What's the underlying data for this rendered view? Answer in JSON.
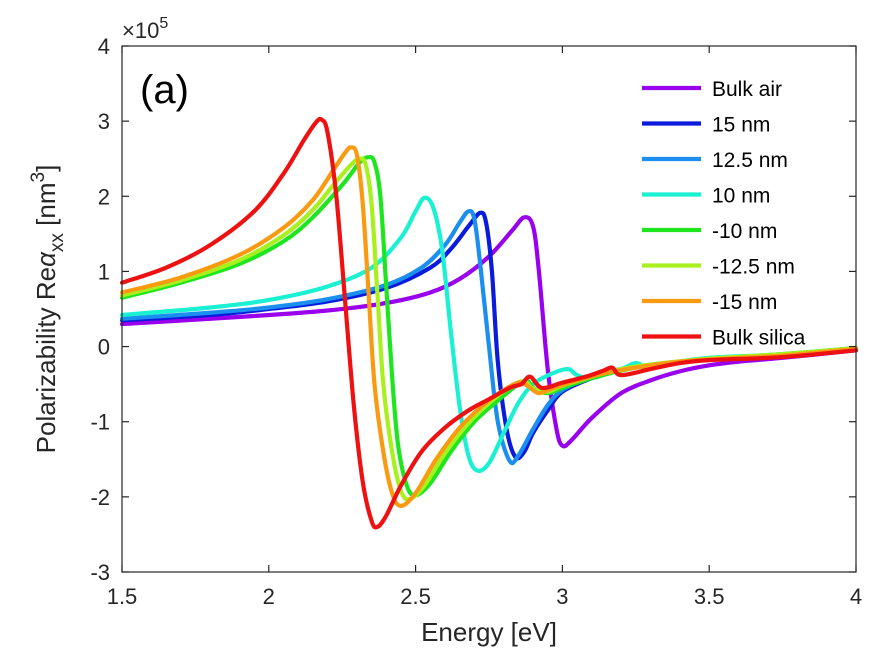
{
  "chart_data": {
    "type": "line",
    "panel_label": "(a)",
    "xlabel": "Energy [eV]",
    "ylabel": {
      "prefix": "Polarizability Re",
      "symbol": "α",
      "subscript": "xx",
      "unit_open": " [nm",
      "unit_sup": "3",
      "unit_close": "]"
    },
    "y_exponent": {
      "times": "×10",
      "power": "5"
    },
    "xlim": [
      1.5,
      4
    ],
    "ylim": [
      -3,
      4
    ],
    "xticks": [
      1.5,
      2,
      2.5,
      3,
      3.5,
      4
    ],
    "xtick_labels": [
      "1.5",
      "2",
      "2.5",
      "3",
      "3.5",
      "4"
    ],
    "yticks": [
      -3,
      -2,
      -1,
      0,
      1,
      2,
      3,
      4
    ],
    "ytick_labels": [
      "-3",
      "-2",
      "-1",
      "0",
      "1",
      "2",
      "3",
      "4"
    ],
    "legend_position": "top-right",
    "series": [
      {
        "name": "Bulk air",
        "color": "#9900ee",
        "points": [
          [
            1.5,
            0.3
          ],
          [
            1.8,
            0.37
          ],
          [
            2.0,
            0.42
          ],
          [
            2.2,
            0.48
          ],
          [
            2.4,
            0.58
          ],
          [
            2.55,
            0.72
          ],
          [
            2.65,
            0.9
          ],
          [
            2.75,
            1.2
          ],
          [
            2.83,
            1.55
          ],
          [
            2.87,
            1.72
          ],
          [
            2.9,
            1.6
          ],
          [
            2.92,
            1.0
          ],
          [
            2.95,
            -0.3
          ],
          [
            2.98,
            -1.1
          ],
          [
            3.0,
            -1.32
          ],
          [
            3.03,
            -1.25
          ],
          [
            3.1,
            -0.95
          ],
          [
            3.2,
            -0.62
          ],
          [
            3.3,
            -0.45
          ],
          [
            3.4,
            -0.33
          ],
          [
            3.5,
            -0.25
          ],
          [
            3.6,
            -0.2
          ],
          [
            3.75,
            -0.15
          ],
          [
            4.0,
            -0.05
          ]
        ]
      },
      {
        "name": "15 nm",
        "color": "#0a1bdc",
        "points": [
          [
            1.5,
            0.35
          ],
          [
            1.8,
            0.42
          ],
          [
            2.0,
            0.5
          ],
          [
            2.2,
            0.6
          ],
          [
            2.4,
            0.78
          ],
          [
            2.55,
            1.05
          ],
          [
            2.62,
            1.3
          ],
          [
            2.68,
            1.6
          ],
          [
            2.72,
            1.78
          ],
          [
            2.74,
            1.65
          ],
          [
            2.76,
            1.0
          ],
          [
            2.78,
            -0.2
          ],
          [
            2.81,
            -1.1
          ],
          [
            2.84,
            -1.47
          ],
          [
            2.87,
            -1.4
          ],
          [
            2.9,
            -1.15
          ],
          [
            2.95,
            -0.85
          ],
          [
            3.0,
            -0.6
          ],
          [
            3.1,
            -0.42
          ],
          [
            3.2,
            -0.3
          ],
          [
            3.35,
            -0.22
          ],
          [
            3.5,
            -0.17
          ],
          [
            3.75,
            -0.12
          ],
          [
            4.0,
            -0.05
          ]
        ]
      },
      {
        "name": "12.5 nm",
        "color": "#1a8ff0",
        "points": [
          [
            1.5,
            0.37
          ],
          [
            1.8,
            0.45
          ],
          [
            2.0,
            0.52
          ],
          [
            2.2,
            0.63
          ],
          [
            2.4,
            0.82
          ],
          [
            2.52,
            1.05
          ],
          [
            2.6,
            1.35
          ],
          [
            2.65,
            1.65
          ],
          [
            2.68,
            1.8
          ],
          [
            2.7,
            1.7
          ],
          [
            2.72,
            1.1
          ],
          [
            2.75,
            0.0
          ],
          [
            2.78,
            -1.0
          ],
          [
            2.82,
            -1.52
          ],
          [
            2.85,
            -1.45
          ],
          [
            2.9,
            -1.1
          ],
          [
            2.95,
            -0.78
          ],
          [
            3.0,
            -0.58
          ],
          [
            3.1,
            -0.4
          ],
          [
            3.2,
            -0.3
          ],
          [
            3.35,
            -0.22
          ],
          [
            3.5,
            -0.17
          ],
          [
            3.75,
            -0.12
          ],
          [
            4.0,
            -0.05
          ]
        ]
      },
      {
        "name": "10 nm",
        "color": "#1af0d2",
        "points": [
          [
            1.5,
            0.42
          ],
          [
            1.8,
            0.52
          ],
          [
            2.0,
            0.62
          ],
          [
            2.2,
            0.8
          ],
          [
            2.35,
            1.05
          ],
          [
            2.45,
            1.45
          ],
          [
            2.5,
            1.8
          ],
          [
            2.53,
            1.98
          ],
          [
            2.56,
            1.85
          ],
          [
            2.59,
            1.3
          ],
          [
            2.62,
            0.2
          ],
          [
            2.65,
            -0.8
          ],
          [
            2.68,
            -1.45
          ],
          [
            2.71,
            -1.65
          ],
          [
            2.75,
            -1.55
          ],
          [
            2.8,
            -1.15
          ],
          [
            2.85,
            -0.75
          ],
          [
            2.9,
            -0.5
          ],
          [
            2.97,
            -0.35
          ],
          [
            3.02,
            -0.3
          ],
          [
            3.05,
            -0.38
          ],
          [
            3.1,
            -0.42
          ],
          [
            3.2,
            -0.3
          ],
          [
            3.25,
            -0.22
          ],
          [
            3.3,
            -0.28
          ],
          [
            3.4,
            -0.2
          ],
          [
            3.5,
            -0.15
          ],
          [
            3.75,
            -0.1
          ],
          [
            4.0,
            -0.02
          ]
        ]
      },
      {
        "name": "-10 nm",
        "color": "#1ee61e",
        "points": [
          [
            1.5,
            0.65
          ],
          [
            1.7,
            0.85
          ],
          [
            1.9,
            1.1
          ],
          [
            2.05,
            1.4
          ],
          [
            2.15,
            1.72
          ],
          [
            2.25,
            2.15
          ],
          [
            2.31,
            2.45
          ],
          [
            2.34,
            2.52
          ],
          [
            2.36,
            2.45
          ],
          [
            2.38,
            2.0
          ],
          [
            2.4,
            0.8
          ],
          [
            2.42,
            -0.4
          ],
          [
            2.44,
            -1.3
          ],
          [
            2.47,
            -1.85
          ],
          [
            2.5,
            -1.98
          ],
          [
            2.55,
            -1.82
          ],
          [
            2.62,
            -1.4
          ],
          [
            2.7,
            -1.0
          ],
          [
            2.78,
            -0.72
          ],
          [
            2.85,
            -0.5
          ],
          [
            2.88,
            -0.45
          ],
          [
            2.9,
            -0.55
          ],
          [
            2.95,
            -0.62
          ],
          [
            3.0,
            -0.55
          ],
          [
            3.1,
            -0.42
          ],
          [
            3.2,
            -0.32
          ],
          [
            3.3,
            -0.25
          ],
          [
            3.5,
            -0.17
          ],
          [
            3.75,
            -0.1
          ],
          [
            4.0,
            -0.02
          ]
        ]
      },
      {
        "name": "-12.5 nm",
        "color": "#a8f01e",
        "points": [
          [
            1.5,
            0.68
          ],
          [
            1.7,
            0.88
          ],
          [
            1.9,
            1.15
          ],
          [
            2.05,
            1.48
          ],
          [
            2.15,
            1.82
          ],
          [
            2.22,
            2.15
          ],
          [
            2.28,
            2.42
          ],
          [
            2.31,
            2.5
          ],
          [
            2.33,
            2.42
          ],
          [
            2.35,
            1.9
          ],
          [
            2.37,
            0.7
          ],
          [
            2.39,
            -0.5
          ],
          [
            2.42,
            -1.4
          ],
          [
            2.45,
            -1.92
          ],
          [
            2.48,
            -2.03
          ],
          [
            2.53,
            -1.85
          ],
          [
            2.6,
            -1.42
          ],
          [
            2.68,
            -1.02
          ],
          [
            2.76,
            -0.72
          ],
          [
            2.83,
            -0.52
          ],
          [
            2.87,
            -0.46
          ],
          [
            2.9,
            -0.56
          ],
          [
            2.95,
            -0.6
          ],
          [
            3.0,
            -0.52
          ],
          [
            3.1,
            -0.4
          ],
          [
            3.2,
            -0.3
          ],
          [
            3.3,
            -0.24
          ],
          [
            3.5,
            -0.16
          ],
          [
            3.75,
            -0.1
          ],
          [
            4.0,
            -0.02
          ]
        ]
      },
      {
        "name": "-15 nm",
        "color": "#fa9a10",
        "points": [
          [
            1.5,
            0.72
          ],
          [
            1.7,
            0.92
          ],
          [
            1.9,
            1.22
          ],
          [
            2.05,
            1.58
          ],
          [
            2.15,
            1.95
          ],
          [
            2.22,
            2.35
          ],
          [
            2.26,
            2.58
          ],
          [
            2.28,
            2.65
          ],
          [
            2.3,
            2.55
          ],
          [
            2.32,
            1.9
          ],
          [
            2.34,
            0.7
          ],
          [
            2.36,
            -0.5
          ],
          [
            2.39,
            -1.4
          ],
          [
            2.42,
            -1.95
          ],
          [
            2.45,
            -2.12
          ],
          [
            2.5,
            -1.95
          ],
          [
            2.57,
            -1.5
          ],
          [
            2.65,
            -1.08
          ],
          [
            2.73,
            -0.78
          ],
          [
            2.8,
            -0.58
          ],
          [
            2.85,
            -0.48
          ],
          [
            2.88,
            -0.52
          ],
          [
            2.92,
            -0.62
          ],
          [
            2.97,
            -0.55
          ],
          [
            3.05,
            -0.45
          ],
          [
            3.15,
            -0.35
          ],
          [
            3.25,
            -0.28
          ],
          [
            3.4,
            -0.2
          ],
          [
            3.6,
            -0.15
          ],
          [
            3.75,
            -0.12
          ],
          [
            4.0,
            -0.03
          ]
        ]
      },
      {
        "name": "Bulk silica",
        "color": "#ee1111",
        "points": [
          [
            1.5,
            0.85
          ],
          [
            1.65,
            1.05
          ],
          [
            1.8,
            1.35
          ],
          [
            1.95,
            1.8
          ],
          [
            2.05,
            2.3
          ],
          [
            2.12,
            2.75
          ],
          [
            2.16,
            2.98
          ],
          [
            2.18,
            3.02
          ],
          [
            2.2,
            2.85
          ],
          [
            2.23,
            2.0
          ],
          [
            2.26,
            0.6
          ],
          [
            2.29,
            -0.8
          ],
          [
            2.32,
            -1.8
          ],
          [
            2.35,
            -2.32
          ],
          [
            2.37,
            -2.4
          ],
          [
            2.4,
            -2.25
          ],
          [
            2.45,
            -1.85
          ],
          [
            2.52,
            -1.4
          ],
          [
            2.6,
            -1.08
          ],
          [
            2.68,
            -0.85
          ],
          [
            2.75,
            -0.7
          ],
          [
            2.82,
            -0.55
          ],
          [
            2.86,
            -0.5
          ],
          [
            2.89,
            -0.4
          ],
          [
            2.93,
            -0.55
          ],
          [
            3.0,
            -0.48
          ],
          [
            3.08,
            -0.4
          ],
          [
            3.14,
            -0.32
          ],
          [
            3.17,
            -0.28
          ],
          [
            3.2,
            -0.38
          ],
          [
            3.3,
            -0.3
          ],
          [
            3.4,
            -0.22
          ],
          [
            3.5,
            -0.18
          ],
          [
            3.75,
            -0.14
          ],
          [
            4.0,
            -0.05
          ]
        ]
      }
    ]
  }
}
